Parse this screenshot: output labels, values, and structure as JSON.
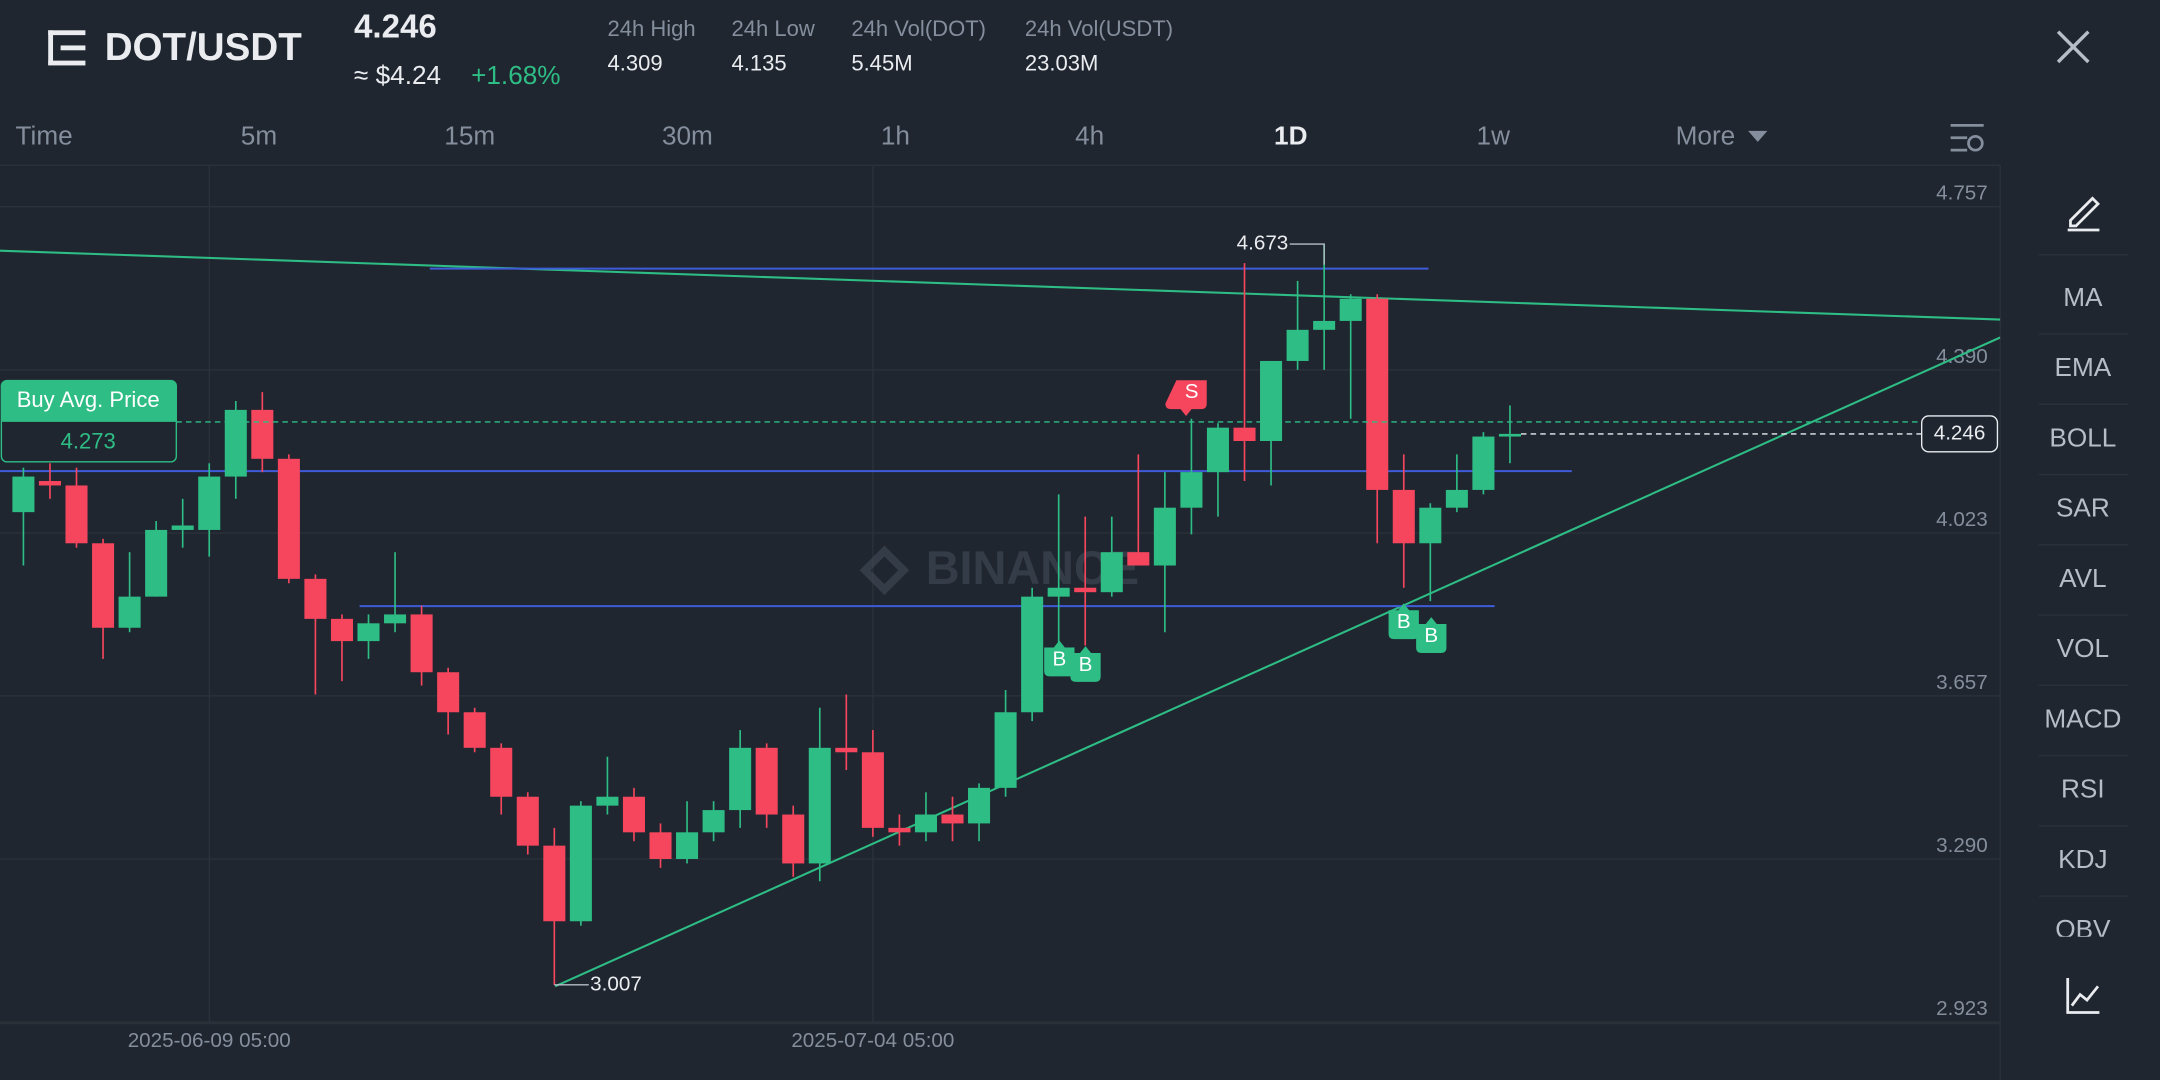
{
  "header": {
    "pair": "DOT/USDT",
    "price": 4.246,
    "price_usd": "≈ $4.24",
    "change": "+1.68%",
    "stats": [
      {
        "label": "24h High",
        "value": 4.309
      },
      {
        "label": "24h Low",
        "value": 4.135
      },
      {
        "label": "24h Vol(DOT)",
        "value": "5.45M"
      },
      {
        "label": "24h Vol(USDT)",
        "value": "23.03M"
      }
    ]
  },
  "tabs": [
    "Time",
    "5m",
    "15m",
    "30m",
    "1h",
    "4h",
    "1D",
    "1w",
    "More"
  ],
  "active_tab": 6,
  "indicators": [
    "MA",
    "EMA",
    "BOLL",
    "SAR",
    "AVL",
    "VOL",
    "MACD",
    "RSI",
    "KDJ",
    "OBV"
  ],
  "chart_data": {
    "type": "candlestick",
    "watermark": "BINANCE",
    "categories": [
      null,
      null,
      null,
      null,
      null,
      null,
      null,
      "2025-06-09 05:00",
      null,
      null,
      null,
      null,
      null,
      null,
      null,
      null,
      null,
      null,
      null,
      null,
      null,
      null,
      null,
      null,
      null,
      null,
      null,
      null,
      null,
      null,
      null,
      null,
      "2025-07-04 05:00",
      null,
      null,
      null,
      null,
      null,
      null,
      null,
      null,
      null,
      null,
      null,
      null,
      null,
      null,
      null,
      null,
      null,
      null,
      null,
      null,
      null,
      null,
      null,
      null
    ],
    "open": [
      4.07,
      4.14,
      4.13,
      4.0,
      3.81,
      3.88,
      4.03,
      4.03,
      4.15,
      4.3,
      4.19,
      3.92,
      3.83,
      3.78,
      3.82,
      3.84,
      3.71,
      3.62,
      3.54,
      3.43,
      3.32,
      3.15,
      3.41,
      3.43,
      3.35,
      3.29,
      3.35,
      3.4,
      3.54,
      3.39,
      3.28,
      3.54,
      3.53,
      3.36,
      3.35,
      3.39,
      3.37,
      3.45,
      3.62,
      3.88,
      3.9,
      3.89,
      3.98,
      3.95,
      4.08,
      4.16,
      4.26,
      4.23,
      4.41,
      4.48,
      4.5,
      4.55,
      4.12,
      4.0,
      4.08,
      4.12,
      4.24
    ],
    "high": [
      4.17,
      4.18,
      4.17,
      4.01,
      3.98,
      4.05,
      4.1,
      4.18,
      4.32,
      4.34,
      4.2,
      3.93,
      3.84,
      3.84,
      3.98,
      3.86,
      3.72,
      3.63,
      3.55,
      3.44,
      3.36,
      3.42,
      3.52,
      3.45,
      3.37,
      3.42,
      3.42,
      3.58,
      3.55,
      3.41,
      3.63,
      3.66,
      3.58,
      3.39,
      3.44,
      3.43,
      3.46,
      3.67,
      3.9,
      4.11,
      4.06,
      4.06,
      4.2,
      4.16,
      4.28,
      4.27,
      4.63,
      4.41,
      4.59,
      4.673,
      4.56,
      4.56,
      4.2,
      4.09,
      4.2,
      4.25,
      4.31
    ],
    "low": [
      3.95,
      4.1,
      3.99,
      3.74,
      3.8,
      3.88,
      3.99,
      3.97,
      4.1,
      4.16,
      3.91,
      3.66,
      3.69,
      3.74,
      3.8,
      3.68,
      3.57,
      3.53,
      3.39,
      3.3,
      3.007,
      3.14,
      3.39,
      3.33,
      3.27,
      3.28,
      3.33,
      3.36,
      3.36,
      3.25,
      3.24,
      3.49,
      3.34,
      3.32,
      3.33,
      3.33,
      3.33,
      3.43,
      3.6,
      3.75,
      3.77,
      3.88,
      3.95,
      3.8,
      4.02,
      4.06,
      4.14,
      4.13,
      4.39,
      4.39,
      4.28,
      4.0,
      3.9,
      3.87,
      4.07,
      4.11,
      4.18
    ],
    "close": [
      4.15,
      4.13,
      4.0,
      3.81,
      3.88,
      4.03,
      4.04,
      4.15,
      4.3,
      4.19,
      3.92,
      3.83,
      3.78,
      3.82,
      3.84,
      3.71,
      3.62,
      3.54,
      3.43,
      3.32,
      3.15,
      3.41,
      3.43,
      3.35,
      3.29,
      3.35,
      3.4,
      3.54,
      3.39,
      3.28,
      3.54,
      3.53,
      3.36,
      3.35,
      3.39,
      3.37,
      3.45,
      3.62,
      3.88,
      3.9,
      3.89,
      3.98,
      3.95,
      4.08,
      4.16,
      4.26,
      4.23,
      4.41,
      4.48,
      4.5,
      4.55,
      4.12,
      4.0,
      4.08,
      4.12,
      4.24,
      4.246
    ],
    "up_color": "#2ebd85",
    "down_color": "#f6465d",
    "ylim": [
      2.92,
      4.85
    ],
    "yticks": [
      4.757,
      {
        "value": 4.39,
        "label": "4.390"
      },
      4.023,
      3.657,
      {
        "value": 3.29,
        "label": "3.290"
      },
      2.923
    ],
    "grid": true,
    "buy_avg": {
      "label": "Buy Avg. Price",
      "value": 4.273
    },
    "trade_markers": [
      "S",
      "B",
      "B",
      "B",
      "B"
    ]
  }
}
